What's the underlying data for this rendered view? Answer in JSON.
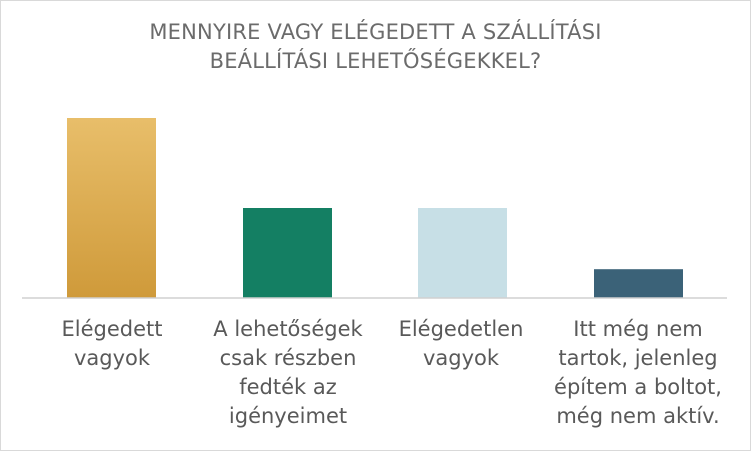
{
  "chart_data": {
    "type": "bar",
    "title_lines": [
      "MENNYIRE VAGY ELÉGEDETT A SZÁLLÍTÁSI",
      "BEÁLLÍTÁSI LEHETŐSÉGEKKEL?"
    ],
    "categories": [
      "Elégedett\nvagyok",
      "A lehetőségek\ncsak részben\nfedték az\nigényeimet",
      "Elégedetlen\nvagyok",
      "Itt még nem\ntartok, jelenleg\népítem a boltot,\nmég nem aktív."
    ],
    "values": [
      100,
      50,
      50,
      16
    ],
    "colors": [
      "#e0ad4c",
      "#147f63",
      "#c7dfe6",
      "#3b6278"
    ],
    "xlabel": "",
    "ylabel": "",
    "ylim": [
      0,
      100
    ],
    "grid": false,
    "legend": "none"
  }
}
